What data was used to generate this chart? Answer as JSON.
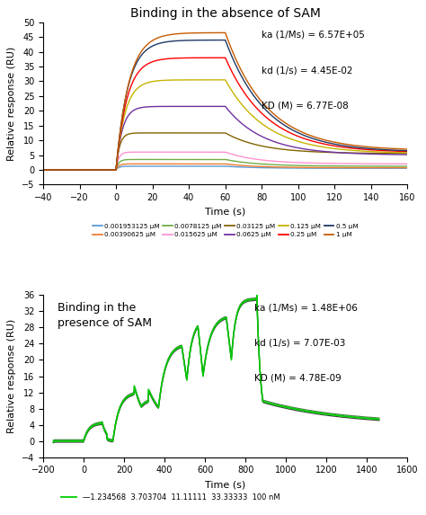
{
  "top": {
    "title": "Binding in the absence of SAM",
    "xlabel": "Time (s)",
    "ylabel": "Relative response (RU)",
    "xlim": [
      -40,
      160
    ],
    "ylim": [
      -5,
      50
    ],
    "xticks": [
      -40,
      -20,
      0,
      20,
      40,
      60,
      80,
      100,
      120,
      140,
      160
    ],
    "yticks": [
      -5,
      0,
      5,
      10,
      15,
      20,
      25,
      30,
      35,
      40,
      45,
      50
    ],
    "annotation": "ka (1/Ms) = 6.57E+05\n\nkd (1/s) = 4.45E-02\n\nKD (M) = 6.77E-08",
    "legend_labels": [
      "0.001953125 μM",
      "0.00390625 μM",
      "0.0078125 μM",
      "0.015625 μM",
      "0.03125 μM",
      "0.0625 μM",
      "0.125 μM",
      "0.25 μM",
      "0.5 μM",
      "1 μM"
    ],
    "legend_colors": [
      "#5b9bd5",
      "#ed7d31",
      "#70ad47",
      "#ff92d0",
      "#836400",
      "#7030a0",
      "#c6b400",
      "#ff0000",
      "#1f3864",
      "#c55a00"
    ],
    "concentrations": [
      0.001953125,
      0.00390625,
      0.0078125,
      0.015625,
      0.03125,
      0.0625,
      0.125,
      0.25,
      0.5,
      1.0
    ],
    "Rmax_values": [
      1.2,
      2.0,
      3.5,
      6.0,
      12.5,
      21.5,
      30.5,
      38.0,
      44.0,
      46.5
    ],
    "rise_tau": [
      1.5,
      1.5,
      1.5,
      1.5,
      2.0,
      3.5,
      5.0,
      6.0,
      6.5,
      7.0
    ],
    "end_vals": [
      0.5,
      0.7,
      1.2,
      2.0,
      5.5,
      5.0,
      5.5,
      5.8,
      6.0,
      6.5
    ],
    "kd_eff": [
      0.06,
      0.06,
      0.055,
      0.055,
      0.05,
      0.048,
      0.045,
      0.044,
      0.044,
      0.044
    ]
  },
  "bottom": {
    "title": "Binding in the\npresence of SAM",
    "xlabel": "Time (s)",
    "ylabel": "Relative response (RU)",
    "xlim": [
      -200,
      1600
    ],
    "ylim": [
      -4,
      36
    ],
    "xticks": [
      -200,
      0,
      200,
      400,
      600,
      800,
      1000,
      1200,
      1400,
      1600
    ],
    "yticks": [
      -4,
      0,
      4,
      8,
      12,
      16,
      20,
      24,
      28,
      32,
      36
    ],
    "annotation": "ka (1/Ms) = 1.48E+06\n\nkd (1/s) = 7.07E-03\n\nKD (M) = 4.78E-09",
    "legend_label": "—1.234568  3.703704  11.11111  33.33333  100 nM",
    "line_color_dark": "#2d6a2d",
    "line_color_bright": "#00cc00",
    "line_color_black": "#222222"
  }
}
